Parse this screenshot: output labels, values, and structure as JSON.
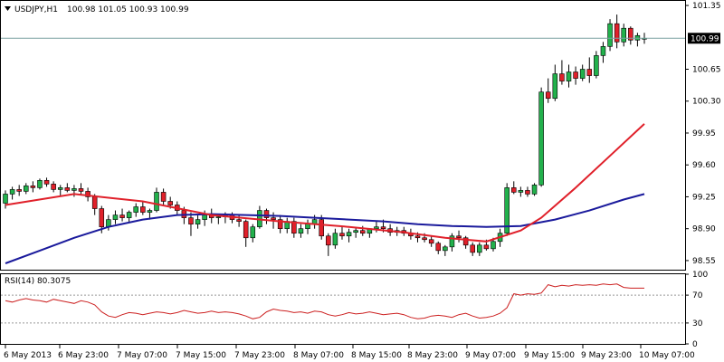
{
  "header": {
    "arrow_icon": "triangle-down-icon",
    "symbol": "USDJPY,H1",
    "ohlc": "100.98 101.05 100.93 100.99"
  },
  "current_price_label": "100.99",
  "rsi_header": "RSI(14) 80.3075",
  "colors": {
    "bull": "#22b14c",
    "bear": "#e0202a",
    "wick": "#000000",
    "ma_fast": "#e0202a",
    "ma_slow": "#1a1a9c",
    "rsi": "#cc2020",
    "price_line": "#7aa0a0",
    "frame": "#000000"
  },
  "chart_data": [
    {
      "type": "candlestick",
      "symbol": "USDJPY",
      "timeframe": "H1",
      "ylim": [
        98.45,
        101.4
      ],
      "y_ticks": [
        "101.35",
        "100.65",
        "100.30",
        "99.95",
        "99.60",
        "99.25",
        "98.90",
        "98.55"
      ],
      "x_ticks": [
        "6 May 2013",
        "6 May 23:00",
        "7 May 07:00",
        "7 May 15:00",
        "7 May 23:00",
        "8 May 07:00",
        "8 May 15:00",
        "8 May 23:00",
        "9 May 07:00",
        "9 May 15:00",
        "9 May 23:00",
        "10 May 07:00"
      ],
      "current_price": 100.99,
      "candles": [
        [
          99.18,
          99.32,
          99.12,
          99.28
        ],
        [
          99.28,
          99.36,
          99.22,
          99.33
        ],
        [
          99.33,
          99.38,
          99.26,
          99.31
        ],
        [
          99.31,
          99.4,
          99.28,
          99.37
        ],
        [
          99.37,
          99.42,
          99.3,
          99.35
        ],
        [
          99.35,
          99.45,
          99.33,
          99.43
        ],
        [
          99.43,
          99.46,
          99.36,
          99.39
        ],
        [
          99.39,
          99.42,
          99.3,
          99.33
        ],
        [
          99.33,
          99.38,
          99.26,
          99.35
        ],
        [
          99.35,
          99.4,
          99.3,
          99.32
        ],
        [
          99.32,
          99.38,
          99.25,
          99.34
        ],
        [
          99.34,
          99.4,
          99.28,
          99.31
        ],
        [
          99.31,
          99.35,
          99.2,
          99.25
        ],
        [
          99.25,
          99.28,
          99.05,
          99.12
        ],
        [
          99.12,
          99.15,
          98.85,
          98.92
        ],
        [
          98.92,
          99.05,
          98.88,
          99.0
        ],
        [
          99.0,
          99.1,
          98.95,
          99.05
        ],
        [
          99.05,
          99.12,
          98.98,
          99.02
        ],
        [
          99.02,
          99.1,
          98.96,
          99.08
        ],
        [
          99.08,
          99.18,
          99.03,
          99.14
        ],
        [
          99.14,
          99.2,
          99.05,
          99.08
        ],
        [
          99.08,
          99.12,
          99.0,
          99.1
        ],
        [
          99.1,
          99.35,
          99.08,
          99.3
        ],
        [
          99.3,
          99.34,
          99.15,
          99.2
        ],
        [
          99.2,
          99.25,
          99.12,
          99.16
        ],
        [
          99.16,
          99.2,
          99.05,
          99.1
        ],
        [
          99.1,
          99.14,
          98.95,
          99.02
        ],
        [
          99.02,
          99.08,
          98.82,
          98.95
        ],
        [
          98.95,
          99.05,
          98.9,
          99.0
        ],
        [
          99.0,
          99.1,
          98.93,
          99.05
        ],
        [
          99.05,
          99.12,
          98.96,
          99.02
        ],
        [
          99.02,
          99.06,
          98.95,
          99.03
        ],
        [
          99.03,
          99.08,
          98.96,
          99.05
        ],
        [
          99.05,
          99.08,
          98.96,
          99.0
        ],
        [
          99.0,
          99.05,
          98.92,
          98.98
        ],
        [
          98.98,
          99.0,
          98.7,
          98.8
        ],
        [
          98.8,
          98.95,
          98.75,
          98.92
        ],
        [
          98.92,
          99.15,
          98.9,
          99.1
        ],
        [
          99.1,
          99.12,
          98.95,
          99.02
        ],
        [
          99.02,
          99.08,
          98.9,
          99.0
        ],
        [
          99.0,
          99.05,
          98.85,
          98.9
        ],
        [
          98.9,
          99.02,
          98.85,
          98.98
        ],
        [
          98.98,
          99.02,
          98.8,
          98.85
        ],
        [
          98.85,
          98.95,
          98.8,
          98.9
        ],
        [
          98.9,
          99.0,
          98.84,
          98.95
        ],
        [
          98.95,
          99.05,
          98.9,
          99.0
        ],
        [
          99.0,
          99.05,
          98.78,
          98.82
        ],
        [
          98.82,
          98.85,
          98.6,
          98.72
        ],
        [
          98.72,
          98.9,
          98.68,
          98.85
        ],
        [
          98.85,
          98.92,
          98.78,
          98.82
        ],
        [
          98.82,
          98.9,
          98.75,
          98.86
        ],
        [
          98.86,
          98.92,
          98.8,
          98.88
        ],
        [
          98.88,
          98.93,
          98.82,
          98.85
        ],
        [
          98.85,
          98.9,
          98.8,
          98.9
        ],
        [
          98.9,
          98.98,
          98.86,
          98.92
        ],
        [
          98.92,
          99.0,
          98.86,
          98.9
        ],
        [
          98.9,
          98.95,
          98.82,
          98.86
        ],
        [
          98.86,
          98.92,
          98.82,
          98.88
        ],
        [
          98.88,
          98.92,
          98.82,
          98.85
        ],
        [
          98.85,
          98.9,
          98.78,
          98.82
        ],
        [
          98.82,
          98.86,
          98.75,
          98.8
        ],
        [
          98.8,
          98.85,
          98.75,
          98.78
        ],
        [
          98.78,
          98.82,
          98.7,
          98.74
        ],
        [
          98.74,
          98.76,
          98.62,
          98.66
        ],
        [
          98.66,
          98.72,
          98.6,
          98.7
        ],
        [
          98.7,
          98.85,
          98.65,
          98.82
        ],
        [
          98.82,
          98.88,
          98.75,
          98.8
        ],
        [
          98.8,
          98.82,
          98.68,
          98.72
        ],
        [
          98.72,
          98.75,
          98.6,
          98.64
        ],
        [
          98.64,
          98.75,
          98.6,
          98.72
        ],
        [
          98.72,
          98.78,
          98.66,
          98.68
        ],
        [
          98.68,
          98.8,
          98.65,
          98.76
        ],
        [
          98.76,
          98.9,
          98.7,
          98.85
        ],
        [
          98.85,
          99.4,
          98.82,
          99.35
        ],
        [
          99.35,
          99.42,
          99.28,
          99.3
        ],
        [
          99.3,
          99.36,
          99.25,
          99.32
        ],
        [
          99.32,
          99.36,
          99.25,
          99.28
        ],
        [
          99.28,
          99.4,
          99.26,
          99.38
        ],
        [
          99.38,
          100.45,
          99.36,
          100.4
        ],
        [
          100.4,
          100.55,
          100.28,
          100.33
        ],
        [
          100.33,
          100.7,
          100.3,
          100.6
        ],
        [
          100.6,
          100.75,
          100.48,
          100.52
        ],
        [
          100.52,
          100.7,
          100.45,
          100.62
        ],
        [
          100.62,
          100.68,
          100.48,
          100.55
        ],
        [
          100.55,
          100.7,
          100.52,
          100.65
        ],
        [
          100.65,
          100.78,
          100.5,
          100.58
        ],
        [
          100.58,
          100.85,
          100.55,
          100.8
        ],
        [
          100.8,
          100.95,
          100.72,
          100.9
        ],
        [
          100.9,
          101.2,
          100.85,
          101.15
        ],
        [
          101.15,
          101.25,
          100.88,
          100.95
        ],
        [
          100.95,
          101.15,
          100.9,
          101.1
        ],
        [
          101.1,
          101.12,
          100.92,
          100.97
        ],
        [
          100.97,
          101.05,
          100.9,
          101.02
        ],
        [
          100.98,
          101.05,
          100.93,
          100.99
        ]
      ],
      "ma_fast": [
        [
          0,
          99.16
        ],
        [
          10,
          99.28
        ],
        [
          20,
          99.2
        ],
        [
          30,
          99.05
        ],
        [
          40,
          98.98
        ],
        [
          50,
          98.92
        ],
        [
          58,
          98.86
        ],
        [
          64,
          98.8
        ],
        [
          70,
          98.76
        ],
        [
          75,
          98.88
        ],
        [
          78,
          99.02
        ],
        [
          83,
          99.35
        ],
        [
          88,
          99.7
        ],
        [
          93,
          100.05
        ]
      ],
      "ma_slow": [
        [
          0,
          98.52
        ],
        [
          5,
          98.66
        ],
        [
          10,
          98.8
        ],
        [
          15,
          98.92
        ],
        [
          20,
          99.0
        ],
        [
          25,
          99.05
        ],
        [
          30,
          99.06
        ],
        [
          35,
          99.05
        ],
        [
          40,
          99.04
        ],
        [
          45,
          99.02
        ],
        [
          50,
          99.0
        ],
        [
          55,
          98.98
        ],
        [
          60,
          98.95
        ],
        [
          65,
          98.93
        ],
        [
          70,
          98.92
        ],
        [
          75,
          98.93
        ],
        [
          80,
          99.0
        ],
        [
          85,
          99.1
        ],
        [
          90,
          99.22
        ],
        [
          93,
          99.28
        ]
      ]
    },
    {
      "type": "line",
      "title": "RSI(14) 80.3075",
      "ylim": [
        0,
        100
      ],
      "y_ticks": [
        "100",
        "70",
        "30",
        "0"
      ],
      "levels": [
        70,
        30
      ],
      "values": [
        62,
        60,
        63,
        65,
        63,
        62,
        60,
        64,
        62,
        60,
        58,
        62,
        60,
        56,
        46,
        40,
        38,
        42,
        45,
        44,
        42,
        44,
        46,
        45,
        43,
        45,
        48,
        46,
        44,
        45,
        47,
        45,
        46,
        45,
        43,
        40,
        36,
        38,
        46,
        50,
        48,
        47,
        45,
        46,
        44,
        47,
        46,
        42,
        40,
        42,
        45,
        43,
        44,
        46,
        44,
        42,
        43,
        44,
        42,
        38,
        36,
        37,
        40,
        41,
        40,
        38,
        42,
        44,
        40,
        37,
        38,
        40,
        44,
        52,
        72,
        70,
        72,
        71,
        73,
        85,
        82,
        84,
        83,
        85,
        84,
        85,
        84,
        86,
        85,
        86,
        81,
        80,
        80,
        80
      ]
    }
  ]
}
